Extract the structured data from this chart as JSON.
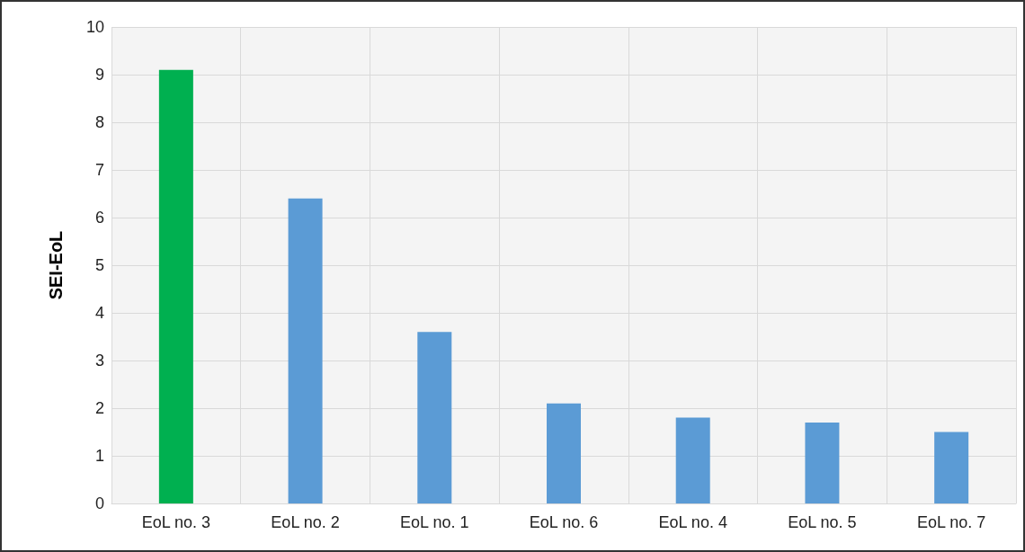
{
  "chart_data": {
    "type": "bar",
    "ylabel": "SEI-EoL",
    "categories": [
      "EoL no. 3",
      "EoL no. 2",
      "EoL no. 1",
      "EoL no. 6",
      "EoL no. 4",
      "EoL no. 5",
      "EoL no. 7"
    ],
    "values": [
      9.1,
      6.4,
      3.6,
      2.1,
      1.8,
      1.7,
      1.5
    ],
    "colors": [
      "#00b050",
      "#5b9bd5",
      "#5b9bd5",
      "#5b9bd5",
      "#5b9bd5",
      "#5b9bd5",
      "#5b9bd5"
    ],
    "ylim": [
      0,
      10
    ],
    "yticks": [
      0,
      1,
      2,
      3,
      4,
      5,
      6,
      7,
      8,
      9,
      10
    ],
    "grid": true
  }
}
